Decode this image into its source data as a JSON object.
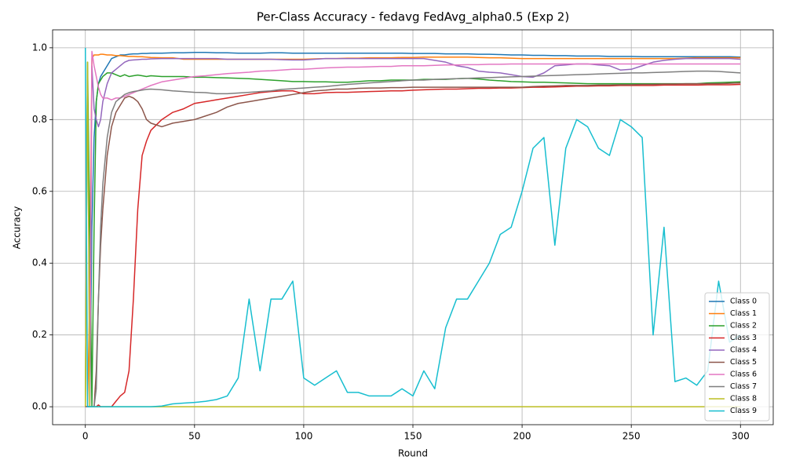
{
  "chart_data": {
    "type": "line",
    "title": "Per-Class Accuracy - fedavg FedAvg_alpha0.5 (Exp 2)",
    "x_label": "Round",
    "y_label": "Accuracy",
    "x": [
      0,
      1,
      2,
      3,
      4,
      5,
      6,
      7,
      8,
      10,
      12,
      14,
      16,
      18,
      20,
      22,
      24,
      26,
      28,
      30,
      35,
      40,
      45,
      50,
      55,
      60,
      65,
      70,
      75,
      80,
      85,
      90,
      95,
      100,
      105,
      110,
      115,
      120,
      125,
      130,
      135,
      140,
      145,
      150,
      155,
      160,
      165,
      170,
      175,
      180,
      185,
      190,
      195,
      200,
      205,
      210,
      215,
      220,
      225,
      230,
      235,
      240,
      245,
      250,
      255,
      260,
      265,
      270,
      275,
      280,
      285,
      290,
      295,
      300
    ],
    "xlim": [
      -15,
      315
    ],
    "xticks": [
      0,
      50,
      100,
      150,
      200,
      250,
      300
    ],
    "ylim": [
      -0.05,
      1.05
    ],
    "yticks": [
      {
        "value": 0,
        "label": "0.0"
      },
      0.2,
      0.4,
      0.6,
      0.8,
      {
        "value": 1,
        "label": "1.0"
      }
    ],
    "grid": true,
    "legend": "lower right",
    "series": [
      {
        "name": "Class 0",
        "color": "#1f77b4",
        "values": [
          0,
          0,
          0,
          0.5,
          0.75,
          0.85,
          0.9,
          0.92,
          0.93,
          0.95,
          0.97,
          0.975,
          0.98,
          0.98,
          0.982,
          0.983,
          0.983,
          0.984,
          0.984,
          0.985,
          0.985,
          0.986,
          0.986,
          0.987,
          0.987,
          0.986,
          0.986,
          0.985,
          0.985,
          0.985,
          0.986,
          0.986,
          0.985,
          0.985,
          0.985,
          0.985,
          0.985,
          0.985,
          0.985,
          0.985,
          0.985,
          0.985,
          0.985,
          0.984,
          0.984,
          0.984,
          0.983,
          0.983,
          0.983,
          0.982,
          0.982,
          0.981,
          0.98,
          0.98,
          0.979,
          0.979,
          0.978,
          0.978,
          0.977,
          0.977,
          0.977,
          0.976,
          0.976,
          0.976,
          0.975,
          0.975,
          0.975,
          0.975,
          0.975,
          0.975,
          0.975,
          0.975,
          0.975,
          0.974
        ]
      },
      {
        "name": "Class 1",
        "color": "#ff7f0e",
        "values": [
          0,
          0,
          0.3,
          0.97,
          0.98,
          0.98,
          0.98,
          0.982,
          0.982,
          0.98,
          0.98,
          0.978,
          0.978,
          0.977,
          0.976,
          0.976,
          0.975,
          0.975,
          0.974,
          0.973,
          0.972,
          0.972,
          0.968,
          0.968,
          0.968,
          0.968,
          0.968,
          0.968,
          0.968,
          0.968,
          0.968,
          0.968,
          0.968,
          0.968,
          0.969,
          0.97,
          0.97,
          0.971,
          0.971,
          0.972,
          0.972,
          0.972,
          0.973,
          0.973,
          0.974,
          0.974,
          0.974,
          0.974,
          0.974,
          0.973,
          0.972,
          0.972,
          0.971,
          0.97,
          0.97,
          0.97,
          0.97,
          0.97,
          0.97,
          0.97,
          0.97,
          0.97,
          0.97,
          0.97,
          0.97,
          0.97,
          0.97,
          0.97,
          0.971,
          0.972,
          0.972,
          0.972,
          0.972,
          0.972
        ]
      },
      {
        "name": "Class 2",
        "color": "#2ca02c",
        "values": [
          0,
          0.96,
          0.5,
          0,
          0.5,
          0.85,
          0.9,
          0.91,
          0.92,
          0.93,
          0.93,
          0.925,
          0.92,
          0.925,
          0.92,
          0.922,
          0.924,
          0.922,
          0.92,
          0.922,
          0.92,
          0.92,
          0.92,
          0.918,
          0.918,
          0.917,
          0.916,
          0.915,
          0.914,
          0.912,
          0.91,
          0.908,
          0.906,
          0.906,
          0.905,
          0.905,
          0.904,
          0.904,
          0.906,
          0.908,
          0.908,
          0.91,
          0.91,
          0.91,
          0.912,
          0.912,
          0.912,
          0.914,
          0.915,
          0.913,
          0.91,
          0.908,
          0.906,
          0.905,
          0.904,
          0.904,
          0.903,
          0.902,
          0.901,
          0.9,
          0.9,
          0.9,
          0.9,
          0.9,
          0.9,
          0.9,
          0.9,
          0.9,
          0.9,
          0.9,
          0.902,
          0.903,
          0.904,
          0.905
        ]
      },
      {
        "name": "Class 3",
        "color": "#d62728",
        "values": [
          0,
          0,
          0,
          0,
          0,
          0,
          0.005,
          0,
          0,
          0,
          0,
          0.015,
          0.03,
          0.04,
          0.1,
          0.3,
          0.55,
          0.7,
          0.74,
          0.77,
          0.8,
          0.82,
          0.83,
          0.845,
          0.85,
          0.855,
          0.86,
          0.865,
          0.87,
          0.875,
          0.878,
          0.88,
          0.88,
          0.872,
          0.872,
          0.875,
          0.876,
          0.876,
          0.877,
          0.878,
          0.879,
          0.88,
          0.88,
          0.882,
          0.883,
          0.884,
          0.885,
          0.885,
          0.886,
          0.887,
          0.887,
          0.888,
          0.888,
          0.889,
          0.89,
          0.89,
          0.891,
          0.892,
          0.893,
          0.893,
          0.894,
          0.894,
          0.895,
          0.895,
          0.895,
          0.895,
          0.896,
          0.896,
          0.896,
          0.896,
          0.897,
          0.897,
          0.897,
          0.898
        ]
      },
      {
        "name": "Class 4",
        "color": "#9467bd",
        "values": [
          0,
          0,
          0,
          0.95,
          0.83,
          0.8,
          0.78,
          0.8,
          0.85,
          0.9,
          0.93,
          0.94,
          0.95,
          0.96,
          0.965,
          0.966,
          0.967,
          0.968,
          0.968,
          0.969,
          0.97,
          0.97,
          0.97,
          0.97,
          0.97,
          0.97,
          0.968,
          0.968,
          0.968,
          0.968,
          0.968,
          0.967,
          0.966,
          0.966,
          0.968,
          0.97,
          0.97,
          0.97,
          0.97,
          0.97,
          0.97,
          0.97,
          0.97,
          0.97,
          0.97,
          0.965,
          0.96,
          0.95,
          0.945,
          0.935,
          0.932,
          0.93,
          0.925,
          0.92,
          0.918,
          0.93,
          0.95,
          0.952,
          0.955,
          0.955,
          0.952,
          0.95,
          0.938,
          0.94,
          0.95,
          0.96,
          0.965,
          0.968,
          0.97,
          0.97,
          0.97,
          0.97,
          0.97,
          0.968
        ]
      },
      {
        "name": "Class 5",
        "color": "#8c564b",
        "values": [
          0,
          0,
          0,
          0,
          0,
          0.1,
          0.3,
          0.45,
          0.55,
          0.7,
          0.78,
          0.82,
          0.84,
          0.86,
          0.865,
          0.86,
          0.85,
          0.83,
          0.8,
          0.79,
          0.78,
          0.79,
          0.795,
          0.8,
          0.81,
          0.82,
          0.835,
          0.845,
          0.85,
          0.855,
          0.86,
          0.865,
          0.87,
          0.875,
          0.88,
          0.882,
          0.885,
          0.885,
          0.887,
          0.888,
          0.888,
          0.889,
          0.889,
          0.89,
          0.89,
          0.89,
          0.89,
          0.89,
          0.89,
          0.89,
          0.89,
          0.89,
          0.89,
          0.89,
          0.892,
          0.893,
          0.894,
          0.895,
          0.895,
          0.895,
          0.896,
          0.896,
          0.897,
          0.897,
          0.898,
          0.898,
          0.899,
          0.899,
          0.9,
          0.9,
          0.9,
          0.9,
          0.901,
          0.902
        ]
      },
      {
        "name": "Class 6",
        "color": "#e377c2",
        "values": [
          0,
          0,
          0,
          0.99,
          0.95,
          0.92,
          0.89,
          0.87,
          0.86,
          0.86,
          0.855,
          0.86,
          0.86,
          0.865,
          0.87,
          0.875,
          0.88,
          0.885,
          0.89,
          0.895,
          0.905,
          0.91,
          0.915,
          0.92,
          0.922,
          0.925,
          0.928,
          0.93,
          0.932,
          0.935,
          0.936,
          0.938,
          0.94,
          0.94,
          0.942,
          0.944,
          0.945,
          0.946,
          0.946,
          0.947,
          0.948,
          0.948,
          0.95,
          0.95,
          0.95,
          0.951,
          0.952,
          0.952,
          0.953,
          0.953,
          0.954,
          0.954,
          0.955,
          0.955,
          0.955,
          0.955,
          0.955,
          0.955,
          0.955,
          0.955,
          0.955,
          0.955,
          0.955,
          0.955,
          0.955,
          0.955,
          0.955,
          0.955,
          0.955,
          0.955,
          0.955,
          0.955,
          0.955,
          0.955
        ]
      },
      {
        "name": "Class 7",
        "color": "#7f7f7f",
        "values": [
          0,
          0,
          0,
          0,
          0,
          0.05,
          0.3,
          0.5,
          0.62,
          0.75,
          0.82,
          0.85,
          0.86,
          0.87,
          0.875,
          0.878,
          0.88,
          0.882,
          0.884,
          0.885,
          0.883,
          0.88,
          0.878,
          0.876,
          0.875,
          0.872,
          0.872,
          0.874,
          0.876,
          0.878,
          0.88,
          0.884,
          0.886,
          0.888,
          0.89,
          0.892,
          0.895,
          0.898,
          0.9,
          0.902,
          0.904,
          0.906,
          0.908,
          0.91,
          0.91,
          0.912,
          0.913,
          0.914,
          0.915,
          0.916,
          0.917,
          0.918,
          0.919,
          0.92,
          0.921,
          0.922,
          0.923,
          0.924,
          0.925,
          0.926,
          0.927,
          0.928,
          0.929,
          0.93,
          0.93,
          0.931,
          0.932,
          0.933,
          0.934,
          0.935,
          0.935,
          0.934,
          0.932,
          0.93
        ]
      },
      {
        "name": "Class 8",
        "color": "#bcbd22",
        "values": [
          0,
          0.96,
          0,
          0,
          0,
          0,
          0,
          0,
          0,
          0,
          0,
          0,
          0,
          0,
          0,
          0,
          0,
          0,
          0,
          0,
          0,
          0,
          0,
          0,
          0,
          0,
          0,
          0,
          0,
          0,
          0,
          0,
          0,
          0,
          0,
          0,
          0,
          0,
          0,
          0,
          0,
          0,
          0,
          0,
          0,
          0,
          0,
          0,
          0,
          0,
          0,
          0,
          0,
          0,
          0,
          0,
          0,
          0,
          0,
          0,
          0,
          0,
          0,
          0,
          0,
          0,
          0,
          0,
          0,
          0,
          0,
          0,
          0,
          0
        ]
      },
      {
        "name": "Class 9",
        "color": "#17becf",
        "values": [
          1,
          0,
          0,
          0,
          0,
          0,
          0,
          0,
          0,
          0,
          0,
          0,
          0,
          0,
          0,
          0,
          0,
          0,
          0,
          0,
          0.002,
          0.008,
          0.01,
          0.012,
          0.015,
          0.02,
          0.03,
          0.08,
          0.3,
          0.1,
          0.3,
          0.3,
          0.35,
          0.08,
          0.06,
          0.08,
          0.1,
          0.04,
          0.04,
          0.03,
          0.03,
          0.03,
          0.05,
          0.03,
          0.1,
          0.05,
          0.22,
          0.3,
          0.3,
          0.35,
          0.4,
          0.48,
          0.5,
          0.6,
          0.72,
          0.75,
          0.45,
          0.72,
          0.8,
          0.78,
          0.72,
          0.7,
          0.8,
          0.78,
          0.75,
          0.2,
          0.5,
          0.07,
          0.08,
          0.06,
          0.1,
          0.35,
          0.18,
          0.2
        ]
      }
    ]
  }
}
